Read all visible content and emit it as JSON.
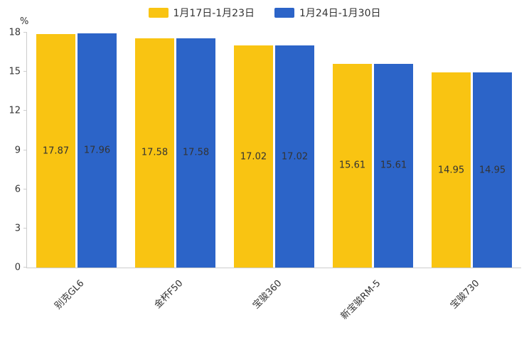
{
  "chart_data": {
    "type": "bar",
    "title": "",
    "ylabel": "%",
    "ylim": [
      0,
      18
    ],
    "yticks": [
      0,
      3,
      6,
      9,
      12,
      15,
      18
    ],
    "grid": false,
    "legend_position": "top",
    "categories": [
      "别克GL6",
      "金杯F50",
      "宝骏360",
      "新宝骏RM-5",
      "宝骏730"
    ],
    "series": [
      {
        "name": "1月17日-1月23日",
        "color": "#F9C412",
        "values": [
          17.87,
          17.58,
          17.02,
          15.61,
          14.95
        ]
      },
      {
        "name": "1月24日-1月30日",
        "color": "#2C64C8",
        "values": [
          17.96,
          17.58,
          17.02,
          15.61,
          14.95
        ]
      }
    ]
  },
  "axis_color": "#cccccc",
  "text_color": "#333333"
}
